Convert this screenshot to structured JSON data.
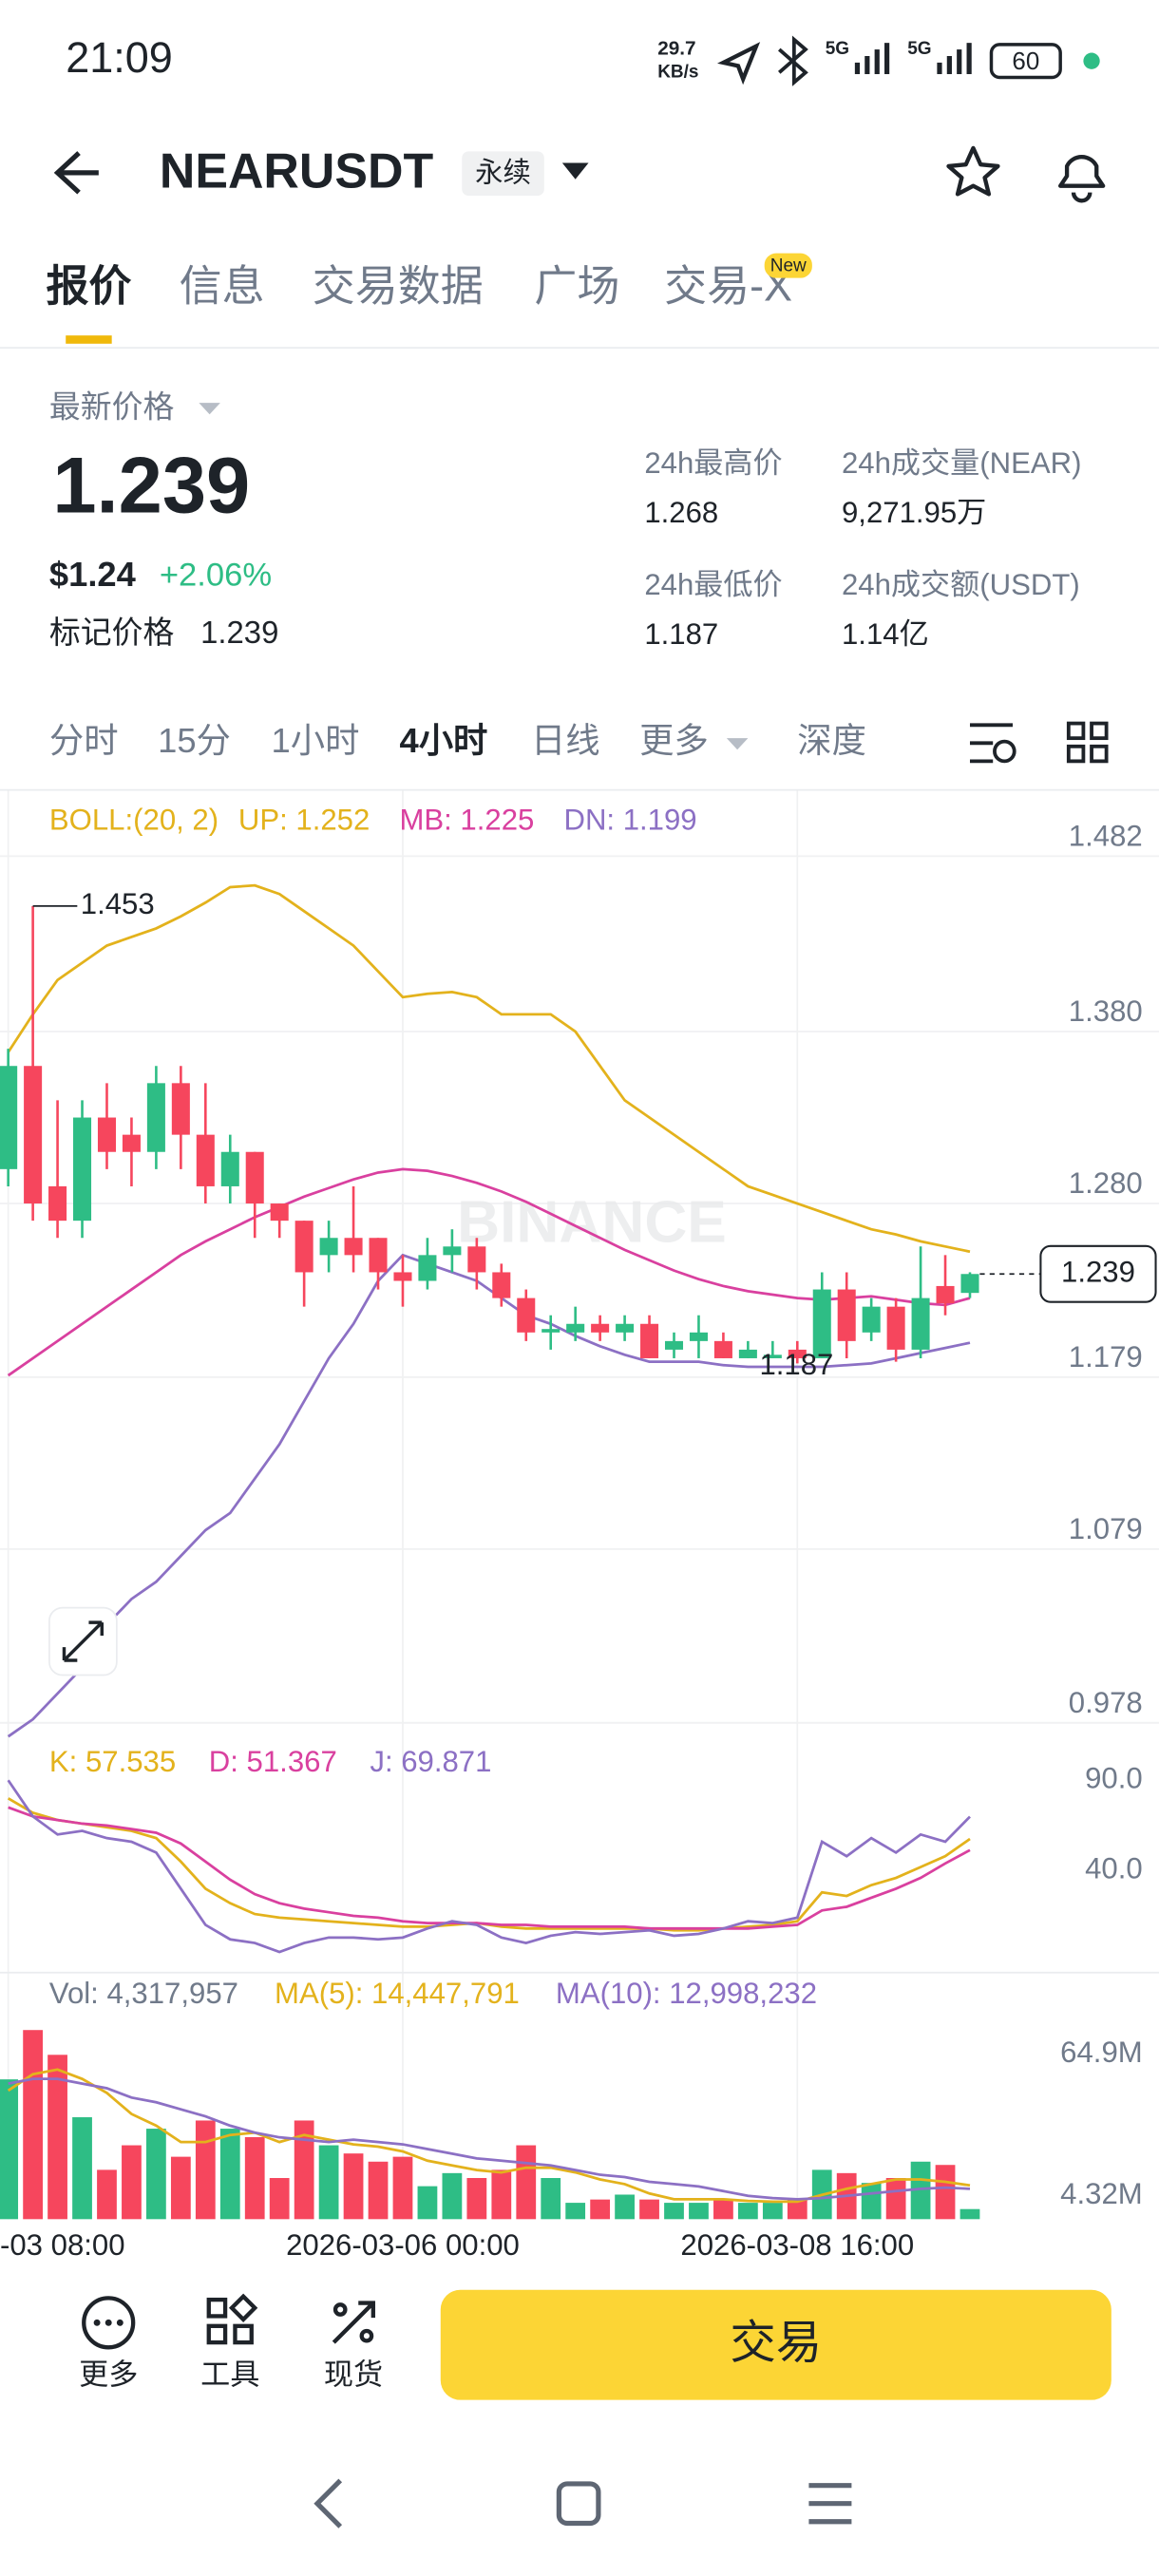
{
  "status_bar": {
    "time": "21:09",
    "speed": "29.7",
    "speed_unit": "KB/s",
    "net1": "5G",
    "net2": "5G",
    "battery": "60"
  },
  "header": {
    "symbol": "NEARUSDT",
    "tag": "永续"
  },
  "tabs": {
    "items": [
      "报价",
      "信息",
      "交易数据",
      "广场",
      "交易-X"
    ],
    "badge": "New"
  },
  "price": {
    "label": "最新价格",
    "value": "1.239",
    "usd": "$1.24",
    "change": "+2.06%",
    "mark_label": "标记价格",
    "mark_value": "1.239"
  },
  "stats": [
    {
      "label": "24h最高价",
      "value": "1.268"
    },
    {
      "label": "24h成交量(NEAR)",
      "value": "9,271.95万"
    },
    {
      "label": "24h最低价",
      "value": "1.187"
    },
    {
      "label": "24h成交额(USDT)",
      "value": "1.14亿"
    }
  ],
  "intervals": [
    "分时",
    "15分",
    "1小时",
    "4小时",
    "日线",
    "更多",
    "深度"
  ],
  "chart_data": [
    {
      "type": "candlestick",
      "legend": "BOLL:(20, 2)",
      "watermark": "BINANCE",
      "up_color": "#2ebd85",
      "down_color": "#f6465d",
      "open": [
        1.3,
        1.36,
        1.29,
        1.27,
        1.33,
        1.32,
        1.31,
        1.35,
        1.32,
        1.29,
        1.31,
        1.28,
        1.27,
        1.25,
        1.26,
        1.26,
        1.24,
        1.235,
        1.25,
        1.255,
        1.24,
        1.225,
        1.205,
        1.205,
        1.21,
        1.205,
        1.21,
        1.195,
        1.2,
        1.2,
        1.19,
        1.19,
        1.195,
        1.19,
        1.23,
        1.205,
        1.22,
        1.195,
        1.232,
        1.228
      ],
      "high": [
        1.37,
        1.453,
        1.34,
        1.34,
        1.35,
        1.33,
        1.36,
        1.36,
        1.35,
        1.32,
        1.31,
        1.28,
        1.27,
        1.27,
        1.29,
        1.26,
        1.25,
        1.26,
        1.265,
        1.26,
        1.245,
        1.23,
        1.215,
        1.22,
        1.215,
        1.215,
        1.215,
        1.205,
        1.215,
        1.205,
        1.2,
        1.2,
        1.2,
        1.24,
        1.24,
        1.225,
        1.225,
        1.255,
        1.25,
        1.24
      ],
      "low": [
        1.29,
        1.27,
        1.26,
        1.26,
        1.3,
        1.29,
        1.3,
        1.3,
        1.28,
        1.28,
        1.26,
        1.26,
        1.22,
        1.24,
        1.24,
        1.23,
        1.22,
        1.23,
        1.24,
        1.23,
        1.22,
        1.2,
        1.195,
        1.2,
        1.2,
        1.2,
        1.19,
        1.19,
        1.19,
        1.19,
        1.19,
        1.19,
        1.187,
        1.19,
        1.19,
        1.2,
        1.188,
        1.19,
        1.215,
        1.225
      ],
      "close": [
        1.36,
        1.28,
        1.27,
        1.33,
        1.31,
        1.31,
        1.35,
        1.32,
        1.29,
        1.31,
        1.28,
        1.27,
        1.24,
        1.26,
        1.25,
        1.24,
        1.235,
        1.25,
        1.255,
        1.24,
        1.225,
        1.205,
        1.207,
        1.21,
        1.205,
        1.21,
        1.19,
        1.2,
        1.205,
        1.19,
        1.195,
        1.192,
        1.19,
        1.23,
        1.2,
        1.22,
        1.195,
        1.225,
        1.222,
        1.239
      ],
      "series": [
        {
          "label": "UP: 1.252",
          "color": "#e3b21c",
          "values": [
            1.368,
            1.39,
            1.41,
            1.42,
            1.43,
            1.435,
            1.44,
            1.447,
            1.455,
            1.464,
            1.465,
            1.46,
            1.45,
            1.44,
            1.43,
            1.415,
            1.4,
            1.402,
            1.403,
            1.4,
            1.39,
            1.39,
            1.39,
            1.38,
            1.36,
            1.34,
            1.33,
            1.32,
            1.31,
            1.3,
            1.29,
            1.285,
            1.28,
            1.275,
            1.27,
            1.265,
            1.262,
            1.258,
            1.255,
            1.252
          ]
        },
        {
          "label": "MB: 1.225",
          "color": "#d9409f",
          "values": [
            1.18,
            1.19,
            1.2,
            1.21,
            1.22,
            1.23,
            1.24,
            1.25,
            1.258,
            1.265,
            1.272,
            1.278,
            1.284,
            1.289,
            1.294,
            1.298,
            1.3,
            1.299,
            1.296,
            1.292,
            1.287,
            1.281,
            1.274,
            1.267,
            1.26,
            1.253,
            1.247,
            1.241,
            1.236,
            1.232,
            1.229,
            1.227,
            1.225,
            1.224,
            1.225,
            1.226,
            1.224,
            1.222,
            1.221,
            1.225
          ]
        },
        {
          "label": "DN: 1.199",
          "color": "#8c70c4",
          "values": [
            0.97,
            0.98,
            0.995,
            1.01,
            1.035,
            1.05,
            1.06,
            1.075,
            1.09,
            1.1,
            1.12,
            1.14,
            1.165,
            1.19,
            1.21,
            1.235,
            1.25,
            1.245,
            1.24,
            1.235,
            1.225,
            1.215,
            1.21,
            1.203,
            1.197,
            1.192,
            1.188,
            1.188,
            1.188,
            1.186,
            1.185,
            1.185,
            1.185,
            1.185,
            1.186,
            1.187,
            1.19,
            1.193,
            1.196,
            1.199
          ]
        }
      ],
      "ylim": [
        0.978,
        1.521
      ],
      "yticks": [
        1.482,
        {
          "value": 1.38,
          "label": "1.380"
        },
        {
          "value": 1.28,
          "label": "1.280"
        },
        1.179,
        1.079,
        0.978
      ],
      "high_label": 1.453,
      "low_label": 1.187,
      "last_price": 1.239
    },
    {
      "type": "line",
      "series": [
        {
          "label": "K: 57.535",
          "color": "#e3b21c",
          "values": [
            80,
            72,
            68,
            66,
            64,
            62,
            58,
            45,
            30,
            22,
            16,
            14,
            13,
            12,
            11,
            10,
            9,
            9,
            10,
            11,
            9,
            8,
            8,
            8,
            8,
            8,
            8,
            7,
            7,
            8,
            9,
            10,
            12,
            28,
            26,
            32,
            36,
            42,
            48,
            57.535
          ]
        },
        {
          "label": "D: 51.367",
          "color": "#d9409f",
          "values": [
            75,
            70,
            68,
            66,
            65,
            63,
            61,
            55,
            45,
            35,
            27,
            22,
            19,
            17,
            15,
            14,
            12,
            11,
            11,
            11,
            10,
            10,
            9,
            9,
            9,
            9,
            8,
            8,
            8,
            8,
            8,
            9,
            10,
            18,
            20,
            25,
            30,
            36,
            44,
            51.367
          ]
        },
        {
          "label": "J: 69.871",
          "color": "#8c70c4",
          "values": [
            90,
            70,
            60,
            62,
            58,
            56,
            50,
            30,
            10,
            2,
            0,
            -5,
            0,
            3,
            3,
            2,
            3,
            8,
            12,
            10,
            3,
            0,
            4,
            6,
            5,
            6,
            7,
            4,
            5,
            8,
            12,
            11,
            14,
            56,
            48,
            58,
            50,
            60,
            56,
            69.871
          ]
        }
      ],
      "ylim": [
        -16.4,
        110.9
      ],
      "yticks": [
        {
          "value": 90,
          "label": "90.0"
        },
        {
          "value": 40,
          "label": "40.0"
        }
      ]
    },
    {
      "type": "bar",
      "legend": "Vol: 4,317,957",
      "categories": [
        "-03 08:00",
        null,
        null,
        null,
        null,
        null,
        null,
        null,
        null,
        null,
        null,
        null,
        null,
        null,
        null,
        null,
        "2026-03-06 00:00",
        null,
        null,
        null,
        null,
        null,
        null,
        null,
        null,
        null,
        null,
        null,
        null,
        null,
        null,
        null,
        "2026-03-08 16:00",
        null,
        null,
        null,
        null,
        null,
        null,
        null
      ],
      "values": [
        59.8,
        80.9,
        70.3,
        43.6,
        21.1,
        31.6,
        38.7,
        26.7,
        42.2,
        38.7,
        35.1,
        17.6,
        42.2,
        31.6,
        28.1,
        24.6,
        26.7,
        14.1,
        19.7,
        17.6,
        21.1,
        31.6,
        17.6,
        7.0,
        8.4,
        10.5,
        8.4,
        7.0,
        7.0,
        8.4,
        7.0,
        7.0,
        8.4,
        21.1,
        19.7,
        15.5,
        17.6,
        24.6,
        23.2,
        4.317957
      ],
      "series": [
        {
          "label": "MA(5): 14,447,791",
          "color": "#e3b21c",
          "values": [
            55,
            62,
            64,
            60,
            54,
            45,
            40,
            33,
            33,
            36,
            37,
            33,
            36,
            34,
            32,
            31,
            29,
            25,
            23,
            21,
            20,
            22,
            22,
            20,
            17,
            15,
            11,
            8.5,
            8.5,
            8.5,
            7.8,
            7.5,
            7.5,
            10.4,
            13,
            15,
            17,
            17,
            16,
            14.447791
          ]
        },
        {
          "label": "MA(10): 12,998,232",
          "color": "#8c70c4",
          "values": [
            58,
            60,
            60,
            58,
            56,
            52,
            50,
            47,
            44,
            40,
            37,
            35,
            34,
            33,
            34,
            33,
            32,
            30,
            28,
            26,
            25,
            24,
            23,
            21,
            19,
            18,
            16,
            15,
            14,
            12,
            10,
            9,
            8.5,
            9,
            10,
            11,
            12,
            13,
            13.5,
            12.998232
          ]
        }
      ],
      "ylim": [
        0,
        90
      ],
      "yticks": [
        {
          "value": 64.9,
          "label": "64.9M"
        },
        {
          "value": 4.32,
          "label": "4.32M"
        }
      ]
    }
  ],
  "bottom_bar": {
    "items": [
      "更多",
      "工具",
      "现货"
    ],
    "button": "交易"
  }
}
